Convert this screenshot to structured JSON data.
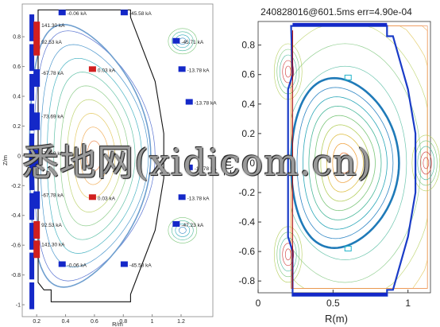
{
  "colors": {
    "background_left": "#ffffff",
    "background_right": "#ffffff",
    "axis": "#888888",
    "wall": "#111111",
    "limiter": "#1a3cc7",
    "coil_blue": "#1428c8",
    "coil_red": "#d11f1f",
    "separatrix_left": "#6f9fcf",
    "separatrix_right": "#1f7ab8",
    "label_text": "#222222"
  },
  "watermark": {
    "text": "悉地网(xidicom.cn)"
  },
  "chart_data": [
    {
      "type": "equilibrium_contour",
      "title": "",
      "xlabel": "R/m",
      "ylabel": "Z/m",
      "xlim": [
        0.1,
        1.42
      ],
      "ylim": [
        -1.08,
        1.02
      ],
      "x_ticks": [
        "0.2",
        "0.4",
        "0.6",
        "0.8",
        "1",
        "1.2"
      ],
      "x_tick_values": [
        0.2,
        0.4,
        0.6,
        0.8,
        1.0,
        1.2
      ],
      "y_ticks": [
        "0.8",
        "0.6",
        "0.4",
        "0.2",
        "0",
        "-0.2",
        "-0.4",
        "-0.6",
        "-0.8",
        "-1"
      ],
      "y_tick_values": [
        0.8,
        0.6,
        0.4,
        0.2,
        0,
        -0.2,
        -0.4,
        -0.6,
        -0.8,
        -1
      ],
      "coil_currents": [
        {
          "label": "-0.06 kA",
          "r": 0.39,
          "z": 0.96,
          "color": "blue"
        },
        {
          "label": "-45.58 kA",
          "r": 0.82,
          "z": 0.96,
          "color": "blue"
        },
        {
          "label": "141.30 kA",
          "r": 0.2,
          "z": 0.88,
          "color": "red"
        },
        {
          "label": "92.53 kA",
          "r": 0.2,
          "z": 0.77,
          "color": "red"
        },
        {
          "label": "-45.71 kA",
          "r": 1.18,
          "z": 0.77,
          "color": "blue"
        },
        {
          "label": "-67.78 kA",
          "r": 0.2,
          "z": 0.56,
          "color": "blue"
        },
        {
          "label": "0.03 kA",
          "r": 0.6,
          "z": 0.58,
          "color": "red"
        },
        {
          "label": "-13.78 kA",
          "r": 1.22,
          "z": 0.58,
          "color": "blue"
        },
        {
          "label": "-13.78 kA",
          "r": 1.27,
          "z": 0.36,
          "color": "blue"
        },
        {
          "label": "-73.69 kA",
          "r": 0.2,
          "z": 0.27,
          "color": "blue"
        },
        {
          "label": "-73.69 kA",
          "r": 0.2,
          "z": 0.02,
          "color": "blue"
        },
        {
          "label": "-13.78 kA",
          "r": 1.27,
          "z": -0.08,
          "color": "blue"
        },
        {
          "label": "-67.78 kA",
          "r": 0.2,
          "z": -0.26,
          "color": "blue"
        },
        {
          "label": "0.03 kA",
          "r": 0.6,
          "z": -0.28,
          "color": "red"
        },
        {
          "label": "-13.78 kA",
          "r": 1.22,
          "z": -0.28,
          "color": "blue"
        },
        {
          "label": "92.53 kA",
          "r": 0.2,
          "z": -0.46,
          "color": "red"
        },
        {
          "label": "-47.23 kA",
          "r": 1.18,
          "z": -0.46,
          "color": "blue"
        },
        {
          "label": "141.30 kA",
          "r": 0.2,
          "z": -0.59,
          "color": "red"
        },
        {
          "label": "-0.06 kA",
          "r": 0.39,
          "z": -0.73,
          "color": "blue"
        },
        {
          "label": "-45.58 kA",
          "r": 0.82,
          "z": -0.73,
          "color": "blue"
        }
      ],
      "plasma": {
        "r0": 0.6,
        "z0": 0.0,
        "a": 0.42,
        "kappa": 2.0,
        "delta": 0.45
      },
      "grid": false
    },
    {
      "type": "equilibrium_contour",
      "title": "240828016@601.5ms err=4.90e-04",
      "xlabel": "R(m)",
      "ylabel": "Z(m)",
      "xlim": [
        0,
        1.15
      ],
      "ylim": [
        -0.88,
        0.96
      ],
      "x_ticks": [
        "0",
        "0.5",
        "1"
      ],
      "x_tick_values": [
        0,
        0.5,
        1
      ],
      "y_ticks": [
        "0.8",
        "0.6",
        "0.4",
        "0.2",
        "0",
        "-0.2",
        "-0.4",
        "-0.6",
        "-0.8"
      ],
      "y_tick_values": [
        0.8,
        0.6,
        0.4,
        0.2,
        0,
        -0.2,
        -0.4,
        -0.6,
        -0.8
      ],
      "plasma": {
        "r0": 0.58,
        "z0": 0.0,
        "a": 0.36,
        "kappa": 1.6,
        "delta": 0.2
      },
      "grid": false
    }
  ]
}
